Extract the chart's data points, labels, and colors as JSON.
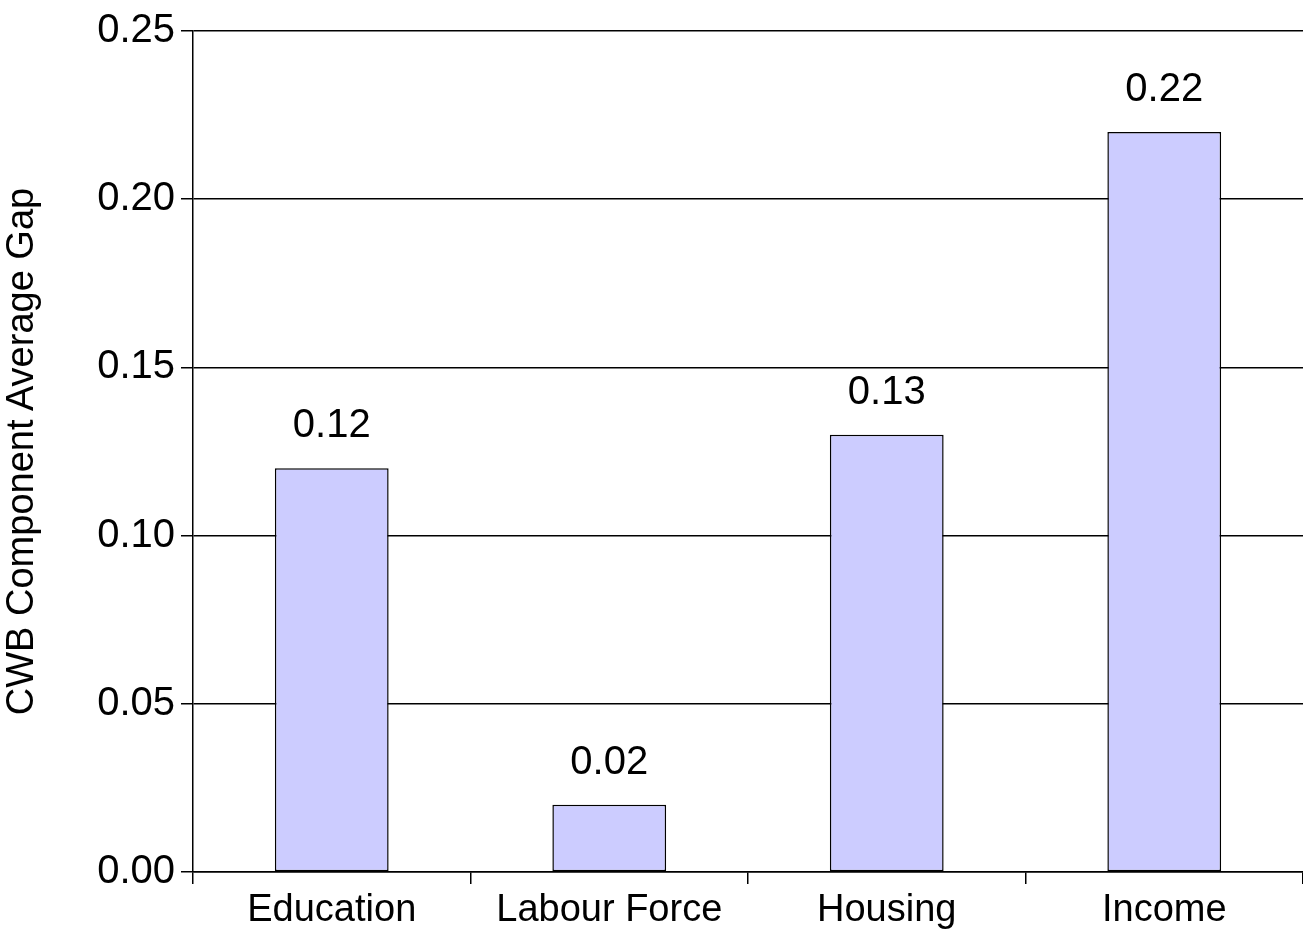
{
  "chart_data": {
    "type": "bar",
    "ylabel": "CWB Component Average Gap",
    "categories": [
      "Education",
      "Labour Force",
      "Housing",
      "Income"
    ],
    "values": [
      0.12,
      0.02,
      0.13,
      0.22
    ],
    "color": "#ccccff",
    "ylim": [
      0,
      0.25
    ],
    "yticks": [
      {
        "value": 0,
        "label": "0.00"
      },
      {
        "value": 0.05,
        "label": "0.05"
      },
      {
        "value": 0.1,
        "label": "0.10"
      },
      {
        "value": 0.15,
        "label": "0.15"
      },
      {
        "value": 0.2,
        "label": "0.20"
      },
      {
        "value": 0.25,
        "label": "0.25"
      }
    ],
    "grid": "y",
    "data_labels": true,
    "legend": false
  }
}
